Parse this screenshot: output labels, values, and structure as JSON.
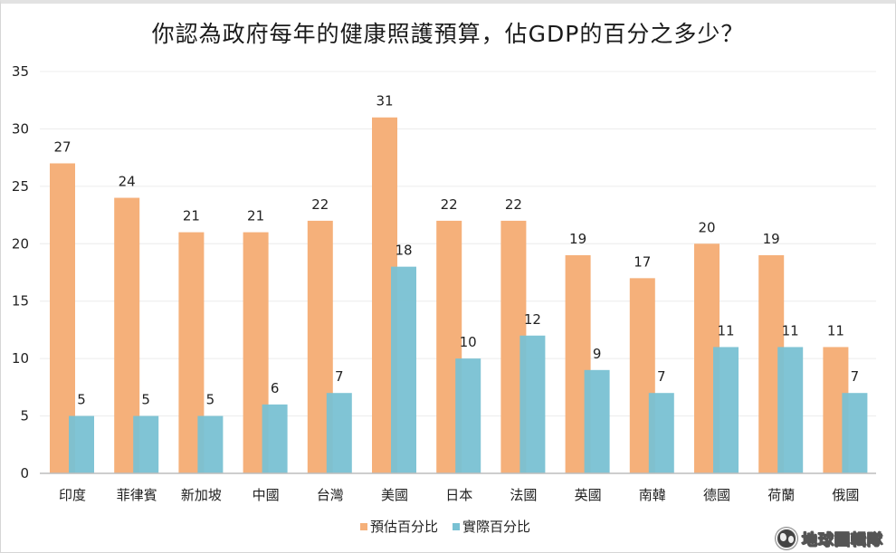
{
  "chart_data": {
    "type": "bar",
    "title": "你認為政府每年的健康照護預算，佔GDP的百分之多少？",
    "xlabel": "",
    "ylabel": "",
    "ylim": [
      0,
      35
    ],
    "yticks": [
      0,
      5,
      10,
      15,
      20,
      25,
      30,
      35
    ],
    "grid": true,
    "legend_position": "bottom-center",
    "categories": [
      "印度",
      "菲律賓",
      "新加坡",
      "中國",
      "台灣",
      "美國",
      "日本",
      "法國",
      "英國",
      "南韓",
      "德國",
      "荷蘭",
      "俄國"
    ],
    "series": [
      {
        "name": "預估百分比",
        "color": "#f5b07a",
        "values": [
          27,
          24,
          21,
          21,
          22,
          31,
          22,
          22,
          19,
          17,
          20,
          19,
          11
        ]
      },
      {
        "name": "實際百分比",
        "color": "#79c1d3",
        "values": [
          5,
          5,
          5,
          6,
          7,
          18,
          10,
          12,
          9,
          7,
          11,
          11,
          7
        ]
      }
    ]
  },
  "branding": {
    "text": "地球圖輯隊",
    "icon": "globe-icon"
  }
}
